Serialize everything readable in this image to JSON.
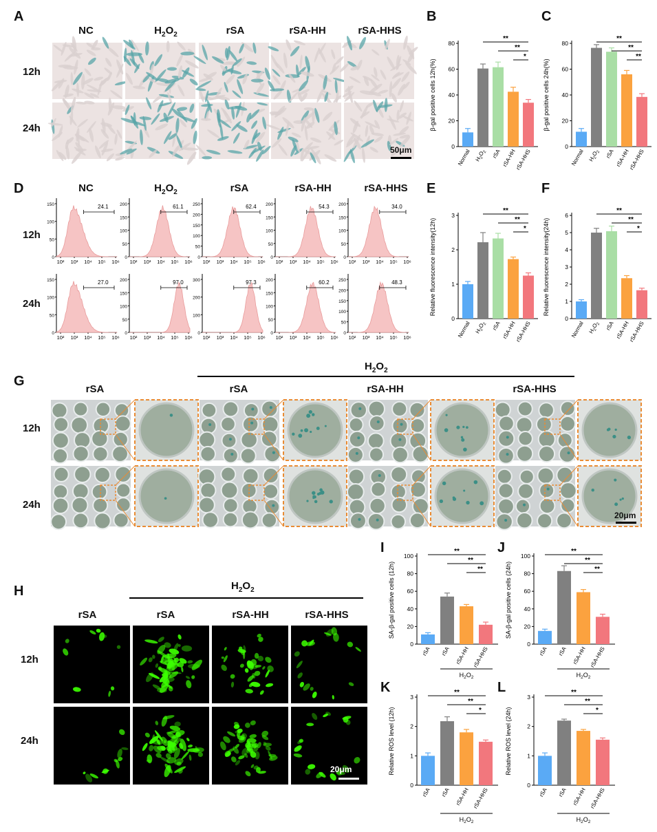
{
  "panel_letters": [
    "A",
    "B",
    "C",
    "D",
    "E",
    "F",
    "G",
    "H",
    "I",
    "J",
    "K",
    "L"
  ],
  "A": {
    "cols": [
      "NC",
      "H2O2",
      "rSA",
      "rSA-HH",
      "rSA-HHS"
    ],
    "rows": [
      "12h",
      "24h"
    ],
    "scale": "50μm"
  },
  "D": {
    "cols": [
      "NC",
      "H2O2",
      "rSA",
      "rSA-HH",
      "rSA-HHS"
    ],
    "rows": [
      "12h",
      "24h"
    ],
    "xticks": [
      "10²",
      "10³",
      "10⁴",
      "10⁵",
      "10⁶"
    ],
    "r12": {
      "vals": [
        "24.1",
        "61.1",
        "62.4",
        "54.3",
        "34.0"
      ],
      "ymax": [
        "150",
        "200",
        "250",
        "200",
        "200"
      ]
    },
    "r24": {
      "vals": [
        "27.0",
        "97.0",
        "97.3",
        "60.2",
        "48.3"
      ],
      "ymax": [
        "150",
        "200",
        "300",
        "200",
        "250"
      ]
    }
  },
  "G": {
    "header": "H2O2",
    "cols": [
      "rSA",
      "rSA",
      "rSA-HH",
      "rSA-HHS"
    ],
    "rows": [
      "12h",
      "24h"
    ],
    "scale": "20μm"
  },
  "H": {
    "header": "H2O2",
    "cols": [
      "rSA",
      "rSA",
      "rSA-HH",
      "rSA-HHS"
    ],
    "rows": [
      "12h",
      "24h"
    ],
    "scale": "20μm"
  },
  "colors": {
    "blue": "#5aaaf5",
    "gray": "#808080",
    "green": "#a9dea5",
    "orange": "#fba23f",
    "red": "#f2777d",
    "pink": "#f6c4c4",
    "gfp": "#3cff00"
  },
  "chart_data": [
    {
      "id": "B",
      "type": "bar",
      "categories": [
        "Normal",
        "H2O2",
        "rSA",
        "rSA-HH",
        "rSA-HHS"
      ],
      "values": [
        11,
        60.5,
        61.5,
        42.5,
        34
      ],
      "errors": [
        3,
        3.5,
        4,
        3.5,
        2.5
      ],
      "ylabel": "β-gal positive cells 12h(%)",
      "ylim": [
        0,
        80
      ],
      "yticks": [
        "0",
        "20",
        "40",
        "60",
        "80"
      ],
      "sig": [
        "**",
        "**",
        "*"
      ]
    },
    {
      "id": "C",
      "type": "bar",
      "categories": [
        "Normal",
        "H2O2",
        "rSA",
        "rSA-HH",
        "rSA-HHS"
      ],
      "values": [
        11.5,
        76.5,
        73.5,
        56,
        38.5
      ],
      "errors": [
        2.5,
        2.5,
        3,
        3,
        2.5
      ],
      "ylabel": "β-gal positive cells 24h(%)",
      "ylim": [
        0,
        80
      ],
      "yticks": [
        "0",
        "20",
        "40",
        "60",
        "80"
      ],
      "sig": [
        "**",
        "**",
        "**"
      ]
    },
    {
      "id": "E",
      "type": "bar",
      "categories": [
        "Normal",
        "H2O2",
        "rSA",
        "rSA-HH",
        "rSA-HHS"
      ],
      "values": [
        1.0,
        2.22,
        2.33,
        1.73,
        1.25
      ],
      "errors": [
        0.08,
        0.28,
        0.15,
        0.06,
        0.08
      ],
      "ylabel": "Relative fluorescence intensity(12h)",
      "ylim": [
        0,
        3
      ],
      "yticks": [
        "0",
        "1",
        "2",
        "3"
      ],
      "sig": [
        "**",
        "**",
        "*"
      ]
    },
    {
      "id": "F",
      "type": "bar",
      "categories": [
        "Normal",
        "H2O2",
        "rSA",
        "rSA-HH",
        "rSA-HHS"
      ],
      "values": [
        1.0,
        5.0,
        5.08,
        2.35,
        1.65
      ],
      "errors": [
        0.1,
        0.25,
        0.3,
        0.15,
        0.12
      ],
      "ylabel": "Relative fluorescence intensity(24h)",
      "ylim": [
        0,
        6
      ],
      "yticks": [
        "0",
        "1",
        "2",
        "3",
        "4",
        "5",
        "6"
      ],
      "sig": [
        "**",
        "**",
        "*"
      ]
    },
    {
      "id": "I",
      "type": "bar",
      "categories": [
        "rSA",
        "rSA",
        "rSA-HH",
        "rSA-HHS"
      ],
      "values": [
        11,
        54,
        43,
        22
      ],
      "errors": [
        2,
        4,
        2,
        3
      ],
      "ylabel": "SA-β-gal positive cells (12h)",
      "ylim": [
        0,
        100
      ],
      "yticks": [
        "0",
        "20",
        "40",
        "60",
        "80",
        "100"
      ],
      "sig": [
        "**",
        "**",
        "**"
      ],
      "group": "H2O2"
    },
    {
      "id": "J",
      "type": "bar",
      "categories": [
        "rSA",
        "rSA",
        "rSA-HH",
        "rSA-HHS"
      ],
      "values": [
        15,
        83,
        59,
        31
      ],
      "errors": [
        2,
        6,
        3,
        3
      ],
      "ylabel": "SA-β-gal positive cells (24h)",
      "ylim": [
        0,
        100
      ],
      "yticks": [
        "0",
        "20",
        "40",
        "60",
        "80",
        "100"
      ],
      "sig": [
        "**",
        "**",
        "**"
      ],
      "group": "H2O2"
    },
    {
      "id": "K",
      "type": "bar",
      "categories": [
        "rSA",
        "rSA",
        "rSA-HH",
        "rSA-HHS"
      ],
      "values": [
        1.0,
        2.18,
        1.8,
        1.48
      ],
      "errors": [
        0.1,
        0.15,
        0.1,
        0.06
      ],
      "ylabel": "Relative ROS level (12h)",
      "ylim": [
        0,
        3
      ],
      "yticks": [
        "0",
        "1",
        "2",
        "3"
      ],
      "sig": [
        "**",
        "**",
        "*"
      ],
      "group": "H2O2"
    },
    {
      "id": "L",
      "type": "bar",
      "categories": [
        "rSA",
        "rSA",
        "rSA-HH",
        "rSA-HHS"
      ],
      "values": [
        1.0,
        2.2,
        1.85,
        1.55
      ],
      "errors": [
        0.1,
        0.05,
        0.05,
        0.06
      ],
      "ylabel": "Relative ROS level (24h)",
      "ylim": [
        0,
        3
      ],
      "yticks": [
        "0",
        "1",
        "2",
        "3"
      ],
      "sig": [
        "**",
        "**",
        "*"
      ],
      "group": "H2O2"
    }
  ]
}
